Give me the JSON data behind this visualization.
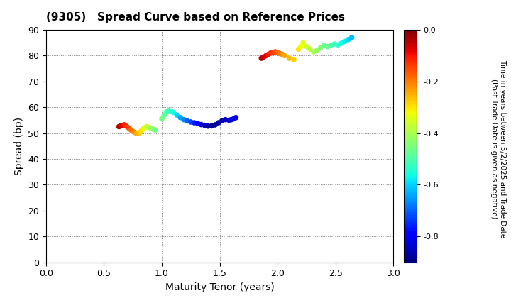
{
  "title": "(9305)   Spread Curve based on Reference Prices",
  "xlabel": "Maturity Tenor (years)",
  "ylabel": "Spread (bp)",
  "colorbar_label_line1": "Time in years between 5/2/2025 and Trade Date",
  "colorbar_label_line2": "(Past Trade Date is given as negative)",
  "xlim": [
    0.0,
    3.0
  ],
  "ylim": [
    0,
    90
  ],
  "xticks": [
    0.0,
    0.5,
    1.0,
    1.5,
    2.0,
    2.5,
    3.0
  ],
  "yticks": [
    0,
    10,
    20,
    30,
    40,
    50,
    60,
    70,
    80,
    90
  ],
  "cmap": "jet",
  "vmin": -0.9,
  "vmax": 0.0,
  "cluster1": {
    "tenor": [
      0.63,
      0.645,
      0.66,
      0.675,
      0.69,
      0.705,
      0.72,
      0.735,
      0.75,
      0.765,
      0.78,
      0.795,
      0.81,
      0.825,
      0.84,
      0.855,
      0.87,
      0.885,
      0.9,
      0.915,
      0.93,
      0.945
    ],
    "spread": [
      52.5,
      52.8,
      53.0,
      53.2,
      52.8,
      52.3,
      51.8,
      51.2,
      50.7,
      50.3,
      50.0,
      49.8,
      50.2,
      51.0,
      51.8,
      52.2,
      52.5,
      52.3,
      52.0,
      51.7,
      51.4,
      51.2
    ],
    "color": [
      -0.04,
      -0.06,
      -0.08,
      -0.1,
      -0.12,
      -0.14,
      -0.16,
      -0.18,
      -0.2,
      -0.22,
      -0.24,
      -0.26,
      -0.28,
      -0.3,
      -0.32,
      -0.34,
      -0.36,
      -0.38,
      -0.4,
      -0.42,
      -0.44,
      -0.46
    ]
  },
  "cluster2": {
    "tenor": [
      1.0,
      1.02,
      1.04,
      1.06,
      1.08,
      1.1,
      1.13,
      1.16,
      1.19,
      1.22,
      1.25,
      1.28,
      1.31,
      1.34,
      1.37,
      1.4,
      1.43,
      1.46,
      1.49,
      1.52,
      1.55,
      1.58,
      1.6,
      1.62,
      1.64
    ],
    "spread": [
      55.5,
      57.0,
      58.2,
      58.8,
      58.5,
      58.0,
      57.0,
      56.0,
      55.2,
      54.7,
      54.3,
      54.0,
      53.7,
      53.3,
      53.0,
      52.7,
      52.8,
      53.2,
      54.0,
      54.8,
      55.2,
      55.0,
      55.2,
      55.5,
      56.0
    ],
    "color": [
      -0.46,
      -0.48,
      -0.5,
      -0.52,
      -0.54,
      -0.56,
      -0.6,
      -0.64,
      -0.67,
      -0.7,
      -0.73,
      -0.76,
      -0.79,
      -0.82,
      -0.85,
      -0.87,
      -0.88,
      -0.88,
      -0.87,
      -0.86,
      -0.85,
      -0.84,
      -0.83,
      -0.82,
      -0.81
    ]
  },
  "cluster3": {
    "tenor": [
      1.86,
      1.88,
      1.9,
      1.92,
      1.94,
      1.96,
      1.98,
      2.0,
      2.02,
      2.04,
      2.06,
      2.1,
      2.14,
      2.18,
      2.2,
      2.22,
      2.25,
      2.28,
      2.31,
      2.34,
      2.37,
      2.4,
      2.43,
      2.46,
      2.49,
      2.52,
      2.55,
      2.58,
      2.61,
      2.64
    ],
    "spread": [
      79.0,
      79.5,
      80.0,
      80.5,
      81.0,
      81.3,
      81.5,
      81.2,
      80.8,
      80.5,
      80.0,
      79.0,
      78.5,
      82.5,
      83.5,
      85.0,
      83.5,
      82.5,
      81.5,
      82.0,
      83.0,
      84.0,
      83.5,
      84.0,
      84.5,
      84.2,
      84.8,
      85.5,
      86.2,
      87.0
    ],
    "color": [
      -0.04,
      -0.06,
      -0.08,
      -0.1,
      -0.12,
      -0.14,
      -0.16,
      -0.18,
      -0.2,
      -0.22,
      -0.24,
      -0.26,
      -0.28,
      -0.3,
      -0.32,
      -0.34,
      -0.36,
      -0.38,
      -0.4,
      -0.42,
      -0.44,
      -0.46,
      -0.48,
      -0.5,
      -0.52,
      -0.54,
      -0.56,
      -0.58,
      -0.6,
      -0.62
    ]
  }
}
